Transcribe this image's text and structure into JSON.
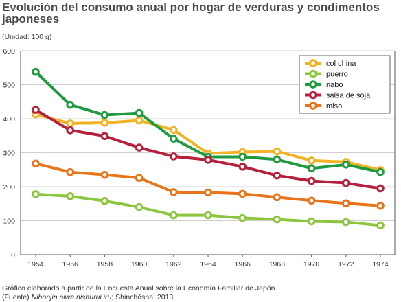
{
  "title": "Evolución del consumo anual por hogar de verduras y condimentos japoneses",
  "unit_label": "(Unidad: 100 g)",
  "footer": {
    "line1": "Gráfico elaborado a partir de la Encuesta Anual sobre la Economía Familiar de Japón.",
    "line2_prefix": "(Fuente) ",
    "line2_title": "Nihonjin niwa nishurui iru",
    "line2_suffix": "; Shinchōsha, 2013."
  },
  "chart_data": {
    "type": "line",
    "title": "Evolución del consumo anual por hogar de verduras y condimentos japoneses",
    "xlabel": "",
    "ylabel": "(Unidad: 100 g)",
    "x": [
      1954,
      1956,
      1958,
      1960,
      1962,
      1964,
      1966,
      1968,
      1970,
      1972,
      1974
    ],
    "ylim": [
      0,
      600
    ],
    "yticks": [
      0,
      100,
      200,
      300,
      400,
      500,
      600
    ],
    "grid": "horizontal",
    "legend_position": "top-right",
    "series": [
      {
        "name": "col china",
        "color": "#f0b323",
        "values": [
          413,
          386,
          388,
          395,
          367,
          298,
          302,
          304,
          277,
          273,
          249
        ]
      },
      {
        "name": "puerro",
        "color": "#8cc63f",
        "values": [
          178,
          172,
          158,
          140,
          116,
          116,
          108,
          104,
          98,
          96,
          86
        ]
      },
      {
        "name": "nabo",
        "color": "#1e9a3f",
        "values": [
          538,
          441,
          411,
          417,
          341,
          288,
          288,
          280,
          254,
          265,
          243
        ]
      },
      {
        "name": "salsa de soja",
        "color": "#b5203c",
        "values": [
          426,
          366,
          349,
          315,
          289,
          279,
          259,
          233,
          217,
          211,
          195
        ]
      },
      {
        "name": "miso",
        "color": "#e8751a",
        "values": [
          268,
          243,
          235,
          226,
          184,
          183,
          179,
          169,
          159,
          151,
          144
        ]
      }
    ]
  }
}
